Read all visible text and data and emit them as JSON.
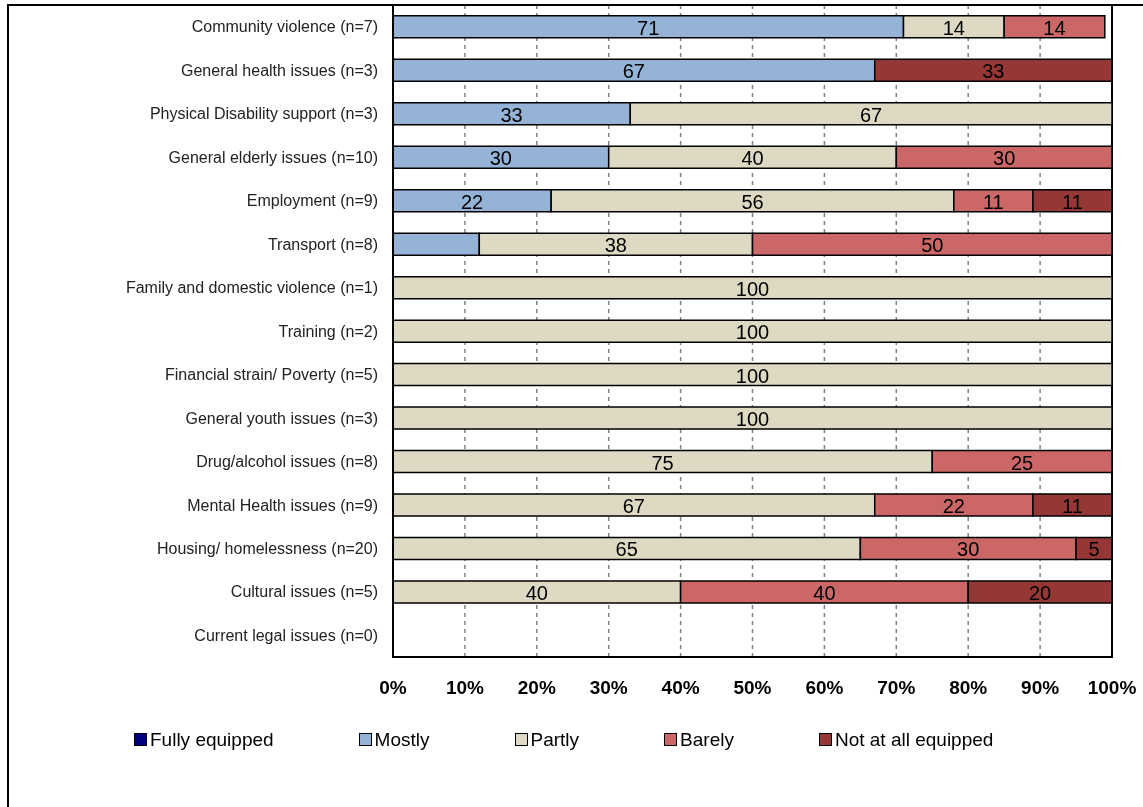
{
  "chart_data": {
    "type": "bar",
    "orientation": "horizontal",
    "stacked": true,
    "categories": [
      "Community violence (n=7)",
      "General health issues (n=3)",
      "Physical Disability support (n=3)",
      "General elderly issues (n=10)",
      "Employment (n=9)",
      "Transport (n=8)",
      "Family and domestic violence (n=1)",
      "Training (n=2)",
      "Financial strain/ Poverty (n=5)",
      "General youth issues (n=3)",
      "Drug/alcohol issues (n=8)",
      "Mental Health issues (n=9)",
      "Housing/ homelessness (n=20)",
      "Cultural issues (n=5)",
      "Current legal issues (n=0)"
    ],
    "series": [
      {
        "name": "Fully equipped",
        "color": "#000080",
        "values": [
          null,
          null,
          null,
          null,
          null,
          null,
          null,
          null,
          null,
          null,
          null,
          null,
          null,
          null,
          null
        ]
      },
      {
        "name": "Mostly",
        "color": "#95b3d7",
        "values": [
          71,
          67,
          33,
          30,
          22,
          12,
          null,
          null,
          null,
          null,
          null,
          null,
          null,
          null,
          null
        ],
        "value_labels": [
          "71",
          "67",
          "33",
          "30",
          "22",
          null,
          null,
          null,
          null,
          null,
          null,
          null,
          null,
          null,
          null
        ]
      },
      {
        "name": "Partly",
        "color": "#ddd9c3",
        "values": [
          14,
          null,
          67,
          40,
          56,
          38,
          100,
          100,
          100,
          100,
          75,
          67,
          65,
          40,
          null
        ],
        "value_labels": [
          "14",
          null,
          "67",
          "40",
          "56",
          "38",
          "100",
          "100",
          "100",
          "100",
          "75",
          "67",
          "65",
          "40",
          null
        ]
      },
      {
        "name": "Barely",
        "color": "#cb6767",
        "values": [
          14,
          null,
          null,
          30,
          11,
          50,
          null,
          null,
          null,
          null,
          25,
          22,
          30,
          40,
          null
        ],
        "value_labels": [
          "14",
          null,
          null,
          "30",
          "11",
          "50",
          null,
          null,
          null,
          null,
          "25",
          "22",
          "30",
          "40",
          null
        ]
      },
      {
        "name": "Not at all equipped",
        "color": "#953735",
        "values": [
          null,
          33,
          null,
          null,
          11,
          null,
          null,
          null,
          null,
          null,
          null,
          11,
          5,
          20,
          null
        ],
        "value_labels": [
          null,
          "33",
          null,
          null,
          "11",
          null,
          null,
          null,
          null,
          null,
          null,
          "11",
          "5",
          "20",
          null
        ]
      }
    ],
    "xlim": [
      0,
      100
    ],
    "xticks": [
      {
        "value": 0,
        "label": "0%"
      },
      {
        "value": 10,
        "label": "10%"
      },
      {
        "value": 20,
        "label": "20%"
      },
      {
        "value": 30,
        "label": "30%"
      },
      {
        "value": 40,
        "label": "40%"
      },
      {
        "value": 50,
        "label": "50%"
      },
      {
        "value": 60,
        "label": "60%"
      },
      {
        "value": 70,
        "label": "70%"
      },
      {
        "value": 80,
        "label": "80%"
      },
      {
        "value": 90,
        "label": "90%"
      },
      {
        "value": 100,
        "label": "100%"
      }
    ],
    "grid": "x",
    "legend": "bottom"
  }
}
